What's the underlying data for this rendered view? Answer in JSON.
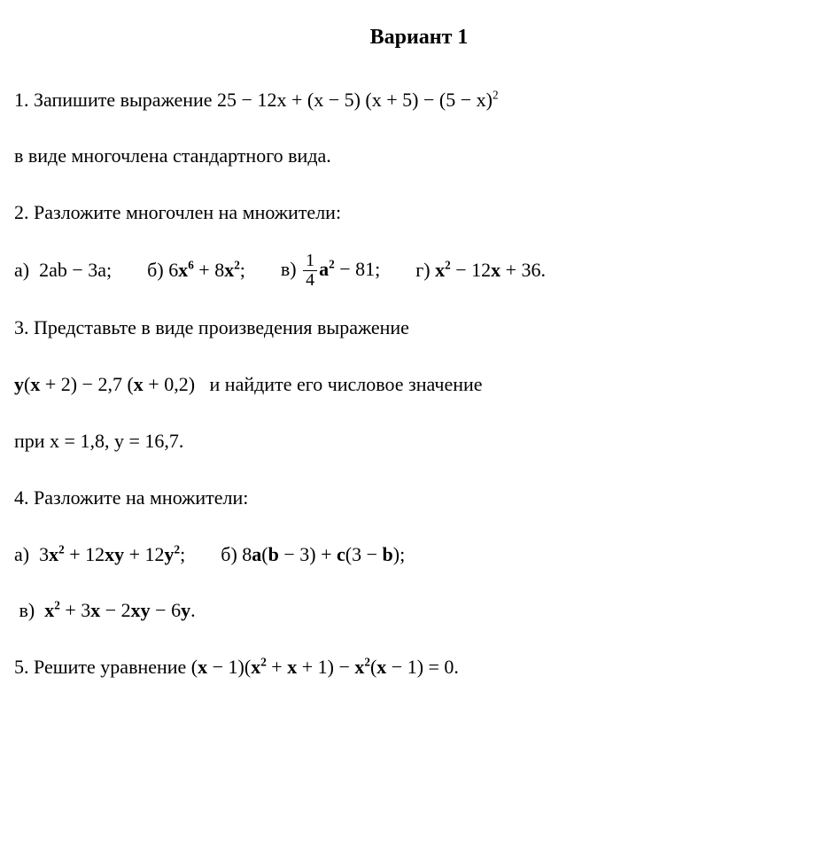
{
  "title": "Вариант 1",
  "q1_a": "1. Запишите выражение 25 − 12x + (x − 5) (x + 5) − (5 − x)",
  "q1_sup": "2",
  "q1_b": "в виде многочлена стандартного вида.",
  "q2": "2. Разложите многочлен на множители:",
  "q2a_lbl": "а)",
  "q2a_expr": "2ab − 3a;",
  "q2b_lbl": "б)",
  "q2b_base": "6",
  "q2b_x1": "x",
  "q2b_sup1": "6",
  "q2b_mid": " + 8",
  "q2b_x2": "x",
  "q2b_sup2": "2",
  "q2b_end": ";",
  "q2c_lbl": "в)",
  "q2c_num": "1",
  "q2c_den": "4",
  "q2c_a": "a",
  "q2c_sup": "2",
  "q2c_end": " − 81;",
  "q2d_lbl": "г)",
  "q2d_x1": "x",
  "q2d_sup": "2",
  "q2d_mid": " − 12",
  "q2d_x2": "x",
  "q2d_end": " + 36.",
  "q3": "3. Представьте в виде произведения выражение",
  "q3_y": "y",
  "q3_p1": "(",
  "q3_x1": "x",
  "q3_p2": " + 2) − 2,7 (",
  "q3_x2": "x",
  "q3_p3": " + 0,2)",
  "q3_tail": " и найдите его числовое значение",
  "q3_b": "при x = 1,8,   y = 16,7.",
  "q4": "4. Разложите на множители:",
  "q4a_lbl": "а)",
  "q4a_1": "3",
  "q4a_x1": "x",
  "q4a_s1": "2",
  "q4a_2": " + 12",
  "q4a_xy": "xy",
  "q4a_3": " + 12",
  "q4a_y": "y",
  "q4a_s2": "2",
  "q4a_end": ";",
  "q4b_lbl": "б)",
  "q4b_1": "8",
  "q4b_a": "a",
  "q4b_2": "(",
  "q4b_b1": "b",
  "q4b_3": " − 3) + ",
  "q4b_c": "c",
  "q4b_4": "(3 − ",
  "q4b_b2": "b",
  "q4b_5": ");",
  "q4c_lbl": "в)",
  "q4c_x1": "x",
  "q4c_s1": "2",
  "q4c_1": " + 3",
  "q4c_x2": "x",
  "q4c_2": " − 2",
  "q4c_xy": "xy",
  "q4c_3": " − 6",
  "q4c_y": "y",
  "q4c_end": ".",
  "q5_a": "5. Решите уравнение (",
  "q5_x1": "x",
  "q5_b": " − 1)(",
  "q5_x2": "x",
  "q5_s1": "2",
  "q5_c": " + ",
  "q5_x3": "x",
  "q5_d": " + 1) − ",
  "q5_x4": "x",
  "q5_s2": "2",
  "q5_e": "(",
  "q5_x5": "x",
  "q5_f": " − 1) = 0."
}
